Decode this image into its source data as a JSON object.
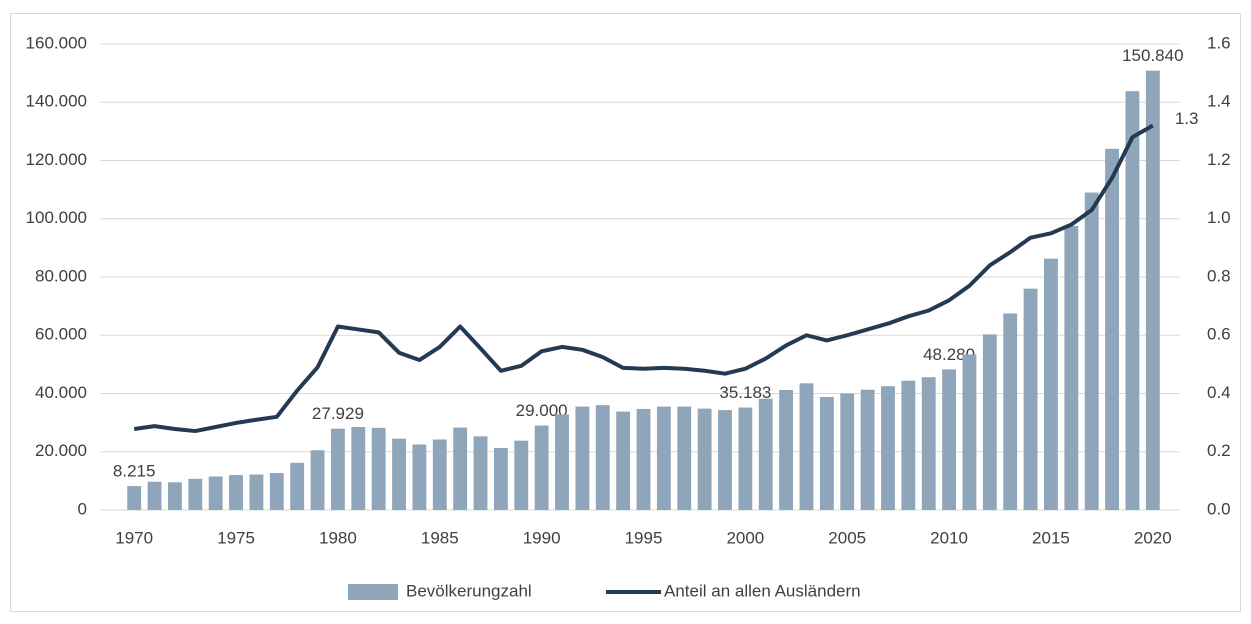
{
  "chart_data": {
    "type": "bar-line",
    "x": [
      1970,
      1971,
      1972,
      1973,
      1974,
      1975,
      1976,
      1977,
      1978,
      1979,
      1980,
      1981,
      1982,
      1983,
      1984,
      1985,
      1986,
      1987,
      1988,
      1989,
      1990,
      1991,
      1992,
      1993,
      1994,
      1995,
      1996,
      1997,
      1998,
      1999,
      2000,
      2001,
      2002,
      2003,
      2004,
      2005,
      2006,
      2007,
      2008,
      2009,
      2010,
      2011,
      2012,
      2013,
      2014,
      2015,
      2016,
      2017,
      2018,
      2019,
      2020
    ],
    "xlim": [
      1969.5,
      2020.5
    ],
    "xticks": [
      1970,
      1975,
      1980,
      1985,
      1990,
      1995,
      2000,
      2005,
      2010,
      2015,
      2020
    ],
    "ylim": [
      0,
      160000
    ],
    "yticks": [
      0,
      {
        "value": 20000,
        "label": "20.000"
      },
      {
        "value": 40000,
        "label": "40.000"
      },
      {
        "value": 60000,
        "label": "60.000"
      },
      {
        "value": 80000,
        "label": "80.000"
      },
      {
        "value": 100000,
        "label": "100.000"
      },
      {
        "value": 120000,
        "label": "120.000"
      },
      {
        "value": 140000,
        "label": "140.000"
      },
      {
        "value": 160000,
        "label": "160.000"
      }
    ],
    "y2lim": [
      0,
      1.6
    ],
    "y2ticks": [
      {
        "value": 0,
        "label": "0.0"
      },
      0.2,
      0.4,
      0.6,
      0.8,
      {
        "value": 1,
        "label": "1.0"
      },
      1.2,
      1.4,
      1.6
    ],
    "grid": true,
    "legend": "bottom",
    "series": [
      {
        "name": "Bevölkerungzahl",
        "type": "bar",
        "color": "#8fa5b9",
        "values": [
          8215,
          9700,
          9500,
          10700,
          11500,
          12000,
          12200,
          12700,
          16200,
          20500,
          27929,
          28500,
          28200,
          24500,
          22500,
          24200,
          28300,
          25300,
          21300,
          23800,
          29000,
          32800,
          35500,
          36000,
          33800,
          34700,
          35500,
          35500,
          34800,
          34300,
          35183,
          38200,
          41200,
          43500,
          38800,
          40000,
          41300,
          42500,
          44400,
          45600,
          48280,
          53400,
          60300,
          67500,
          76000,
          86300,
          97500,
          109000,
          124000,
          143800,
          150840
        ],
        "value_labels": [
          "8.215",
          null,
          null,
          null,
          null,
          null,
          null,
          null,
          null,
          null,
          "27.929",
          null,
          null,
          null,
          null,
          null,
          null,
          null,
          null,
          null,
          "29.000",
          null,
          null,
          null,
          null,
          null,
          null,
          null,
          null,
          null,
          "35.183",
          null,
          null,
          null,
          null,
          null,
          null,
          null,
          null,
          null,
          "48.280",
          null,
          null,
          null,
          null,
          null,
          null,
          null,
          null,
          null,
          "150.840"
        ]
      },
      {
        "name": "Anteil an allen Ausländern",
        "type": "line",
        "axis": "y2",
        "color": "#243a52",
        "values": [
          0.278,
          0.288,
          0.278,
          0.271,
          0.285,
          0.299,
          0.31,
          0.32,
          0.41,
          0.49,
          0.63,
          0.62,
          0.61,
          0.54,
          0.515,
          0.56,
          0.63,
          0.555,
          0.478,
          0.495,
          0.545,
          0.56,
          0.55,
          0.525,
          0.488,
          0.485,
          0.488,
          0.485,
          0.478,
          0.468,
          0.485,
          0.52,
          0.565,
          0.6,
          0.582,
          0.6,
          0.62,
          0.64,
          0.665,
          0.685,
          0.72,
          0.77,
          0.84,
          0.885,
          0.935,
          0.95,
          0.98,
          1.03,
          1.14,
          1.28,
          1.32
        ],
        "value_labels": [
          null,
          null,
          null,
          null,
          null,
          null,
          null,
          null,
          null,
          null,
          null,
          null,
          null,
          null,
          null,
          null,
          null,
          null,
          null,
          null,
          null,
          null,
          null,
          null,
          null,
          null,
          null,
          null,
          null,
          null,
          null,
          null,
          null,
          null,
          null,
          null,
          null,
          null,
          null,
          null,
          null,
          null,
          null,
          null,
          null,
          null,
          null,
          null,
          null,
          null,
          "1.3"
        ]
      }
    ]
  }
}
